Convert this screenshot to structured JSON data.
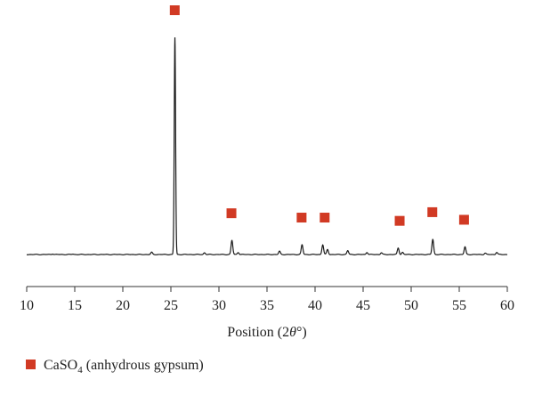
{
  "chart_data": {
    "type": "line",
    "xlabel_parts": [
      "Position (2",
      "θ",
      "°)"
    ],
    "ylabel": "",
    "xlim": [
      10,
      60
    ],
    "x_ticks": [
      10,
      15,
      20,
      25,
      30,
      35,
      40,
      45,
      50,
      55,
      60
    ],
    "y_axis_visible": false,
    "grid": false,
    "legend_position": "bottom-left",
    "series": [
      {
        "name": "CaSO4 (anhydrous gypsum)",
        "marker": "square",
        "color": "#d13a24",
        "marker_positions": [
          25.4,
          31.3,
          38.6,
          41.0,
          48.8,
          52.2,
          55.5
        ]
      }
    ],
    "pattern": {
      "line_color": "#1a1a1a",
      "baseline": 0,
      "peaks": [
        {
          "x": 12.7,
          "height": 0.3
        },
        {
          "x": 14.8,
          "height": 0.2
        },
        {
          "x": 23.0,
          "height": 1.0
        },
        {
          "x": 25.42,
          "height": 100
        },
        {
          "x": 28.5,
          "height": 0.8
        },
        {
          "x": 31.35,
          "height": 6.5
        },
        {
          "x": 32.0,
          "height": 1.0
        },
        {
          "x": 36.3,
          "height": 1.5
        },
        {
          "x": 38.65,
          "height": 4.5
        },
        {
          "x": 40.8,
          "height": 4.5
        },
        {
          "x": 41.3,
          "height": 2.3
        },
        {
          "x": 43.4,
          "height": 1.8
        },
        {
          "x": 45.4,
          "height": 1.0
        },
        {
          "x": 46.9,
          "height": 0.8
        },
        {
          "x": 48.65,
          "height": 3.0
        },
        {
          "x": 49.1,
          "height": 1.0
        },
        {
          "x": 52.25,
          "height": 7.0
        },
        {
          "x": 55.6,
          "height": 3.5
        },
        {
          "x": 57.7,
          "height": 0.6
        },
        {
          "x": 58.9,
          "height": 1.0
        }
      ]
    },
    "legend": {
      "label_main": "CaSO",
      "label_sub": "4",
      "label_rest": " (anhydrous gypsum)"
    }
  }
}
